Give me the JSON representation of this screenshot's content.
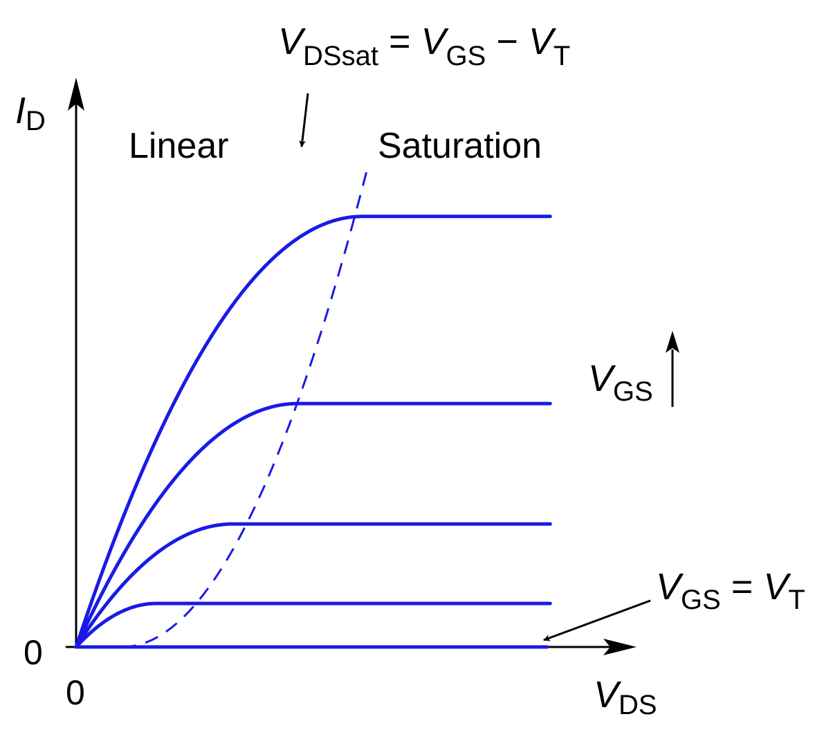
{
  "chart_data": {
    "type": "line",
    "title": "",
    "xlabel": "V",
    "xlabel_sub": "DS",
    "ylabel": "I",
    "ylabel_sub": "D",
    "x_origin_label": "0",
    "y_origin_label": "0",
    "xlim": [
      0,
      1
    ],
    "ylim": [
      0,
      1
    ],
    "grid": false,
    "region_labels": {
      "linear": "Linear",
      "saturation": "Saturation"
    },
    "series": [
      {
        "vds_sat": 0.0,
        "id_sat": 0.0
      },
      {
        "vds_sat": 0.13,
        "id_sat": 0.099
      },
      {
        "vds_sat": 0.255,
        "id_sat": 0.28
      },
      {
        "vds_sat": 0.36,
        "id_sat": 0.554
      },
      {
        "vds_sat": 0.465,
        "id_sat": 0.98
      }
    ],
    "x_max_curve": 1.0,
    "boundary": {
      "x0": 0.075,
      "x1": 0.475,
      "y1": 1.1
    },
    "annotations": {
      "vdssat": {
        "main": "V",
        "sub1": "DSsat",
        "eq": " = ",
        "main2": "V",
        "sub2": "GS",
        "minus": " − ",
        "main3": "V",
        "sub3": "T"
      },
      "vgs_arrow": {
        "main": "V",
        "sub": "GS"
      },
      "vgs_eq_vt": {
        "main": "V",
        "sub1": "GS",
        "eq": " = ",
        "main2": "V",
        "sub2": "T"
      }
    },
    "colors": {
      "curve": "#1a1ae6",
      "axis": "#000000"
    }
  }
}
